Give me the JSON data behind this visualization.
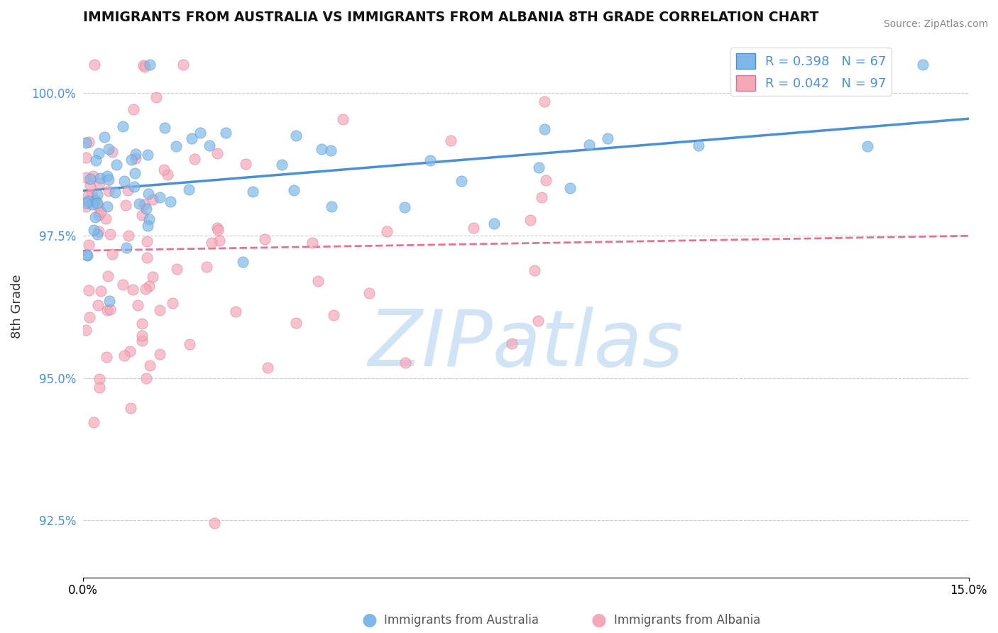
{
  "title": "IMMIGRANTS FROM AUSTRALIA VS IMMIGRANTS FROM ALBANIA 8TH GRADE CORRELATION CHART",
  "source": "Source: ZipAtlas.com",
  "ylabel": "8th Grade",
  "ytick_values": [
    92.5,
    95.0,
    97.5,
    100.0
  ],
  "xlim": [
    0.0,
    15.0
  ],
  "ylim": [
    91.5,
    101.0
  ],
  "legend_australia": "R = 0.398   N = 67",
  "legend_albania": "R = 0.042   N = 97",
  "color_australia": "#7EB8E8",
  "color_albania": "#F4A8B8",
  "color_trend_australia": "#4A90D9",
  "color_trend_albania": "#E87090",
  "background_color": "#FFFFFF",
  "watermark_color": "#C8E0F4"
}
